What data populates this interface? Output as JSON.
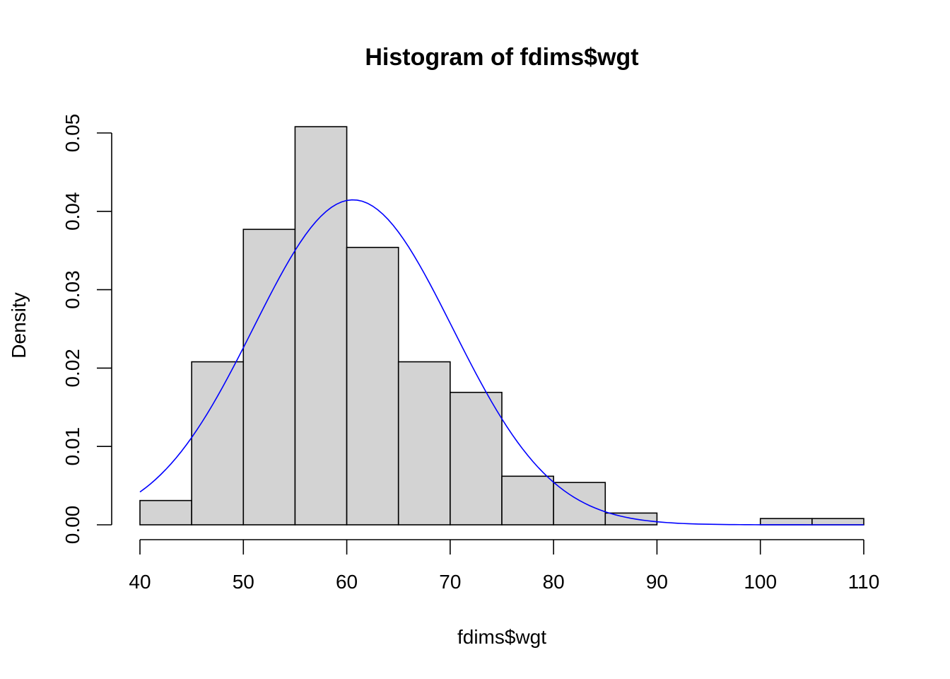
{
  "chart_data": {
    "type": "bar",
    "title": "Histogram of fdims$wgt",
    "xlabel": "fdims$wgt",
    "ylabel": "Density",
    "xlim": [
      40,
      110
    ],
    "ylim": [
      0,
      0.05
    ],
    "bin_width": 5,
    "bins": [
      {
        "from": 40,
        "to": 45,
        "density": 0.0031
      },
      {
        "from": 45,
        "to": 50,
        "density": 0.0208
      },
      {
        "from": 50,
        "to": 55,
        "density": 0.0377
      },
      {
        "from": 55,
        "to": 60,
        "density": 0.0508
      },
      {
        "from": 60,
        "to": 65,
        "density": 0.0354
      },
      {
        "from": 65,
        "to": 70,
        "density": 0.0208
      },
      {
        "from": 70,
        "to": 75,
        "density": 0.0169
      },
      {
        "from": 75,
        "to": 80,
        "density": 0.0062
      },
      {
        "from": 80,
        "to": 85,
        "density": 0.0054
      },
      {
        "from": 85,
        "to": 90,
        "density": 0.0015
      },
      {
        "from": 90,
        "to": 95,
        "density": 0
      },
      {
        "from": 95,
        "to": 100,
        "density": 0
      },
      {
        "from": 100,
        "to": 105,
        "density": 0.0008
      },
      {
        "from": 105,
        "to": 110,
        "density": 0.0008
      }
    ],
    "x_ticks": [
      "40",
      "50",
      "60",
      "70",
      "80",
      "90",
      "100",
      "110"
    ],
    "y_ticks": [
      "0.00",
      "0.01",
      "0.02",
      "0.03",
      "0.04",
      "0.05"
    ],
    "overlay_curve": {
      "type": "normal-density",
      "mean": 60.6,
      "sd": 9.62
    },
    "grid": false,
    "legend": "none"
  },
  "colors": {
    "bar_fill": "#d3d3d3",
    "bar_stroke": "#000000",
    "curve": "#0000ff",
    "axis": "#000000"
  }
}
